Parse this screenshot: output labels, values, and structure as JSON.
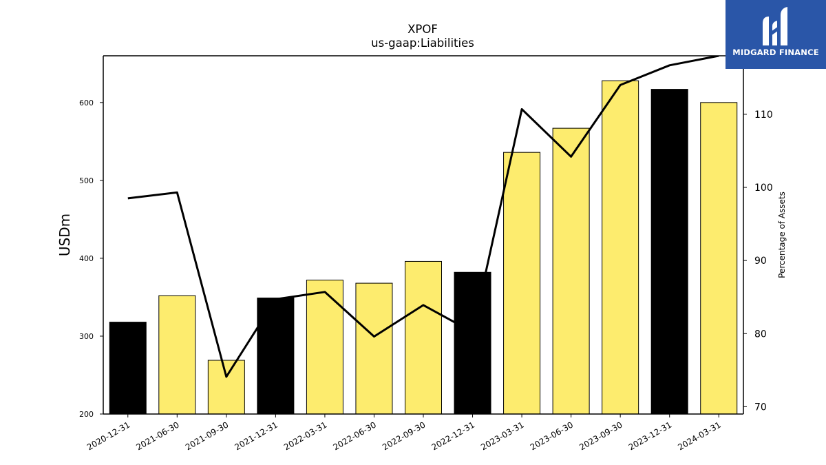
{
  "chart_data": {
    "type": "bar",
    "title": "XPOF",
    "subtitle": "us-gaap:Liabilities",
    "ylabel": "USDm",
    "y2label": "Percentage of Assets",
    "ylim": [
      200,
      660
    ],
    "y2lim": [
      69,
      118
    ],
    "yticks": [
      200,
      300,
      400,
      500,
      600
    ],
    "y2ticks": [
      70,
      80,
      90,
      100,
      110
    ],
    "grid": false,
    "categories": [
      "2020-12-31",
      "2021-06-30",
      "2021-09-30",
      "2021-12-31",
      "2022-03-31",
      "2022-06-30",
      "2022-09-30",
      "2022-12-31",
      "2023-03-31",
      "2023-06-30",
      "2023-09-30",
      "2023-12-31",
      "2024-03-31"
    ],
    "series": [
      {
        "type": "bar",
        "values": [
          318,
          352,
          269,
          349,
          372,
          368,
          396,
          382,
          536,
          567,
          628,
          617,
          600
        ],
        "fiscal_year_end": [
          true,
          false,
          false,
          true,
          false,
          false,
          false,
          true,
          false,
          false,
          false,
          true,
          false
        ],
        "colors": {
          "year_end": "#000000",
          "quarter": "#fdec6e"
        }
      },
      {
        "type": "line",
        "axis": "right",
        "color": "#000000",
        "values": [
          98.5,
          99.3,
          74.1,
          84.7,
          85.7,
          79.6,
          83.9,
          80.2,
          110.7,
          104.2,
          114.0,
          116.7,
          118.0
        ]
      }
    ]
  },
  "logo": {
    "text": "MIDGARD FINANCE",
    "color": "#2a56a8"
  }
}
